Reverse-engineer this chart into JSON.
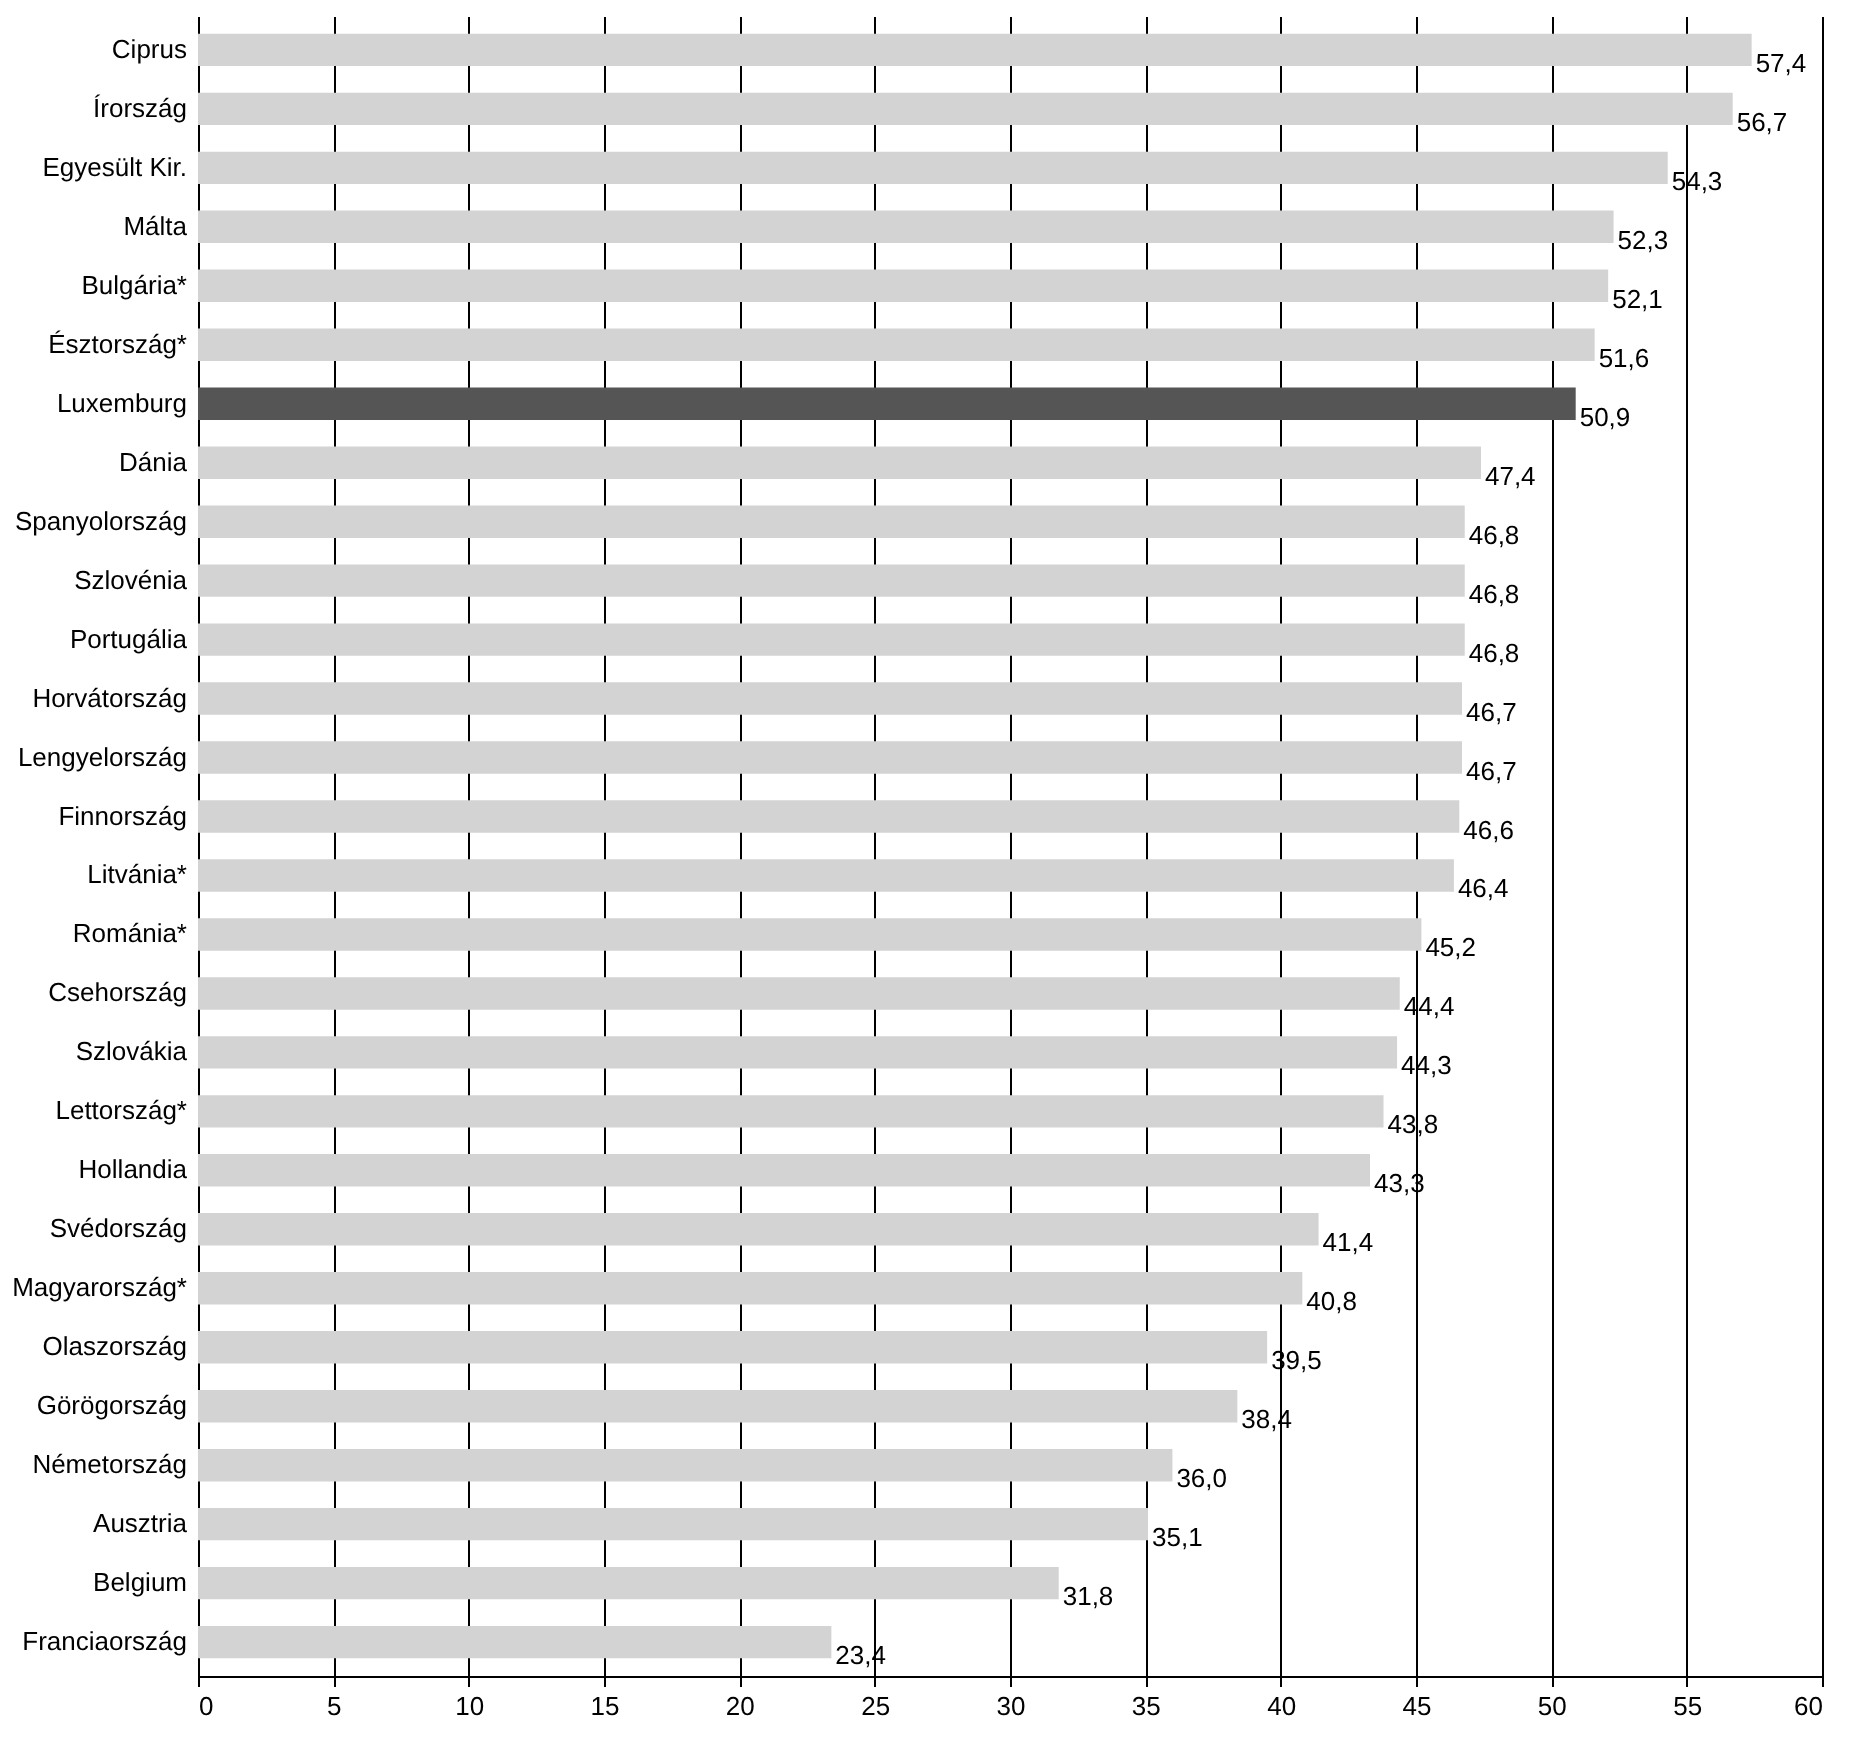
{
  "chart_data": {
    "type": "bar",
    "orientation": "horizontal",
    "categories": [
      "Ciprus",
      "Írország",
      "Egyesült Kir.",
      "Málta",
      "Bulgária*",
      "Észtország*",
      "Luxemburg",
      "Dánia",
      "Spanyolország",
      "Szlovénia",
      "Portugália",
      "Horvátország",
      "Lengyelország",
      "Finnország",
      "Litvánia*",
      "Románia*",
      "Csehország",
      "Szlovákia",
      "Lettország*",
      "Hollandia",
      "Svédország",
      "Magyarország*",
      "Olaszország",
      "Görögország",
      "Németország",
      "Ausztria",
      "Belgium",
      "Franciaország"
    ],
    "values": [
      57.4,
      56.7,
      54.3,
      52.3,
      52.1,
      51.6,
      50.9,
      47.4,
      46.8,
      46.8,
      46.8,
      46.7,
      46.7,
      46.6,
      46.4,
      45.2,
      44.4,
      44.3,
      43.8,
      43.3,
      41.4,
      40.8,
      39.5,
      38.4,
      36.0,
      35.1,
      31.8,
      23.4
    ],
    "value_labels": [
      "57,4",
      "56,7",
      "54,3",
      "52,3",
      "52,1",
      "51,6",
      "50,9",
      "47,4",
      "46,8",
      "46,8",
      "46,8",
      "46,7",
      "46,7",
      "46,6",
      "46,4",
      "45,2",
      "44,4",
      "44,3",
      "43,8",
      "43,3",
      "41,4",
      "40,8",
      "39,5",
      "38,4",
      "36,0",
      "35,1",
      "31,8",
      "23,4"
    ],
    "colors": [
      "#d3d3d3",
      "#d3d3d3",
      "#d3d3d3",
      "#d3d3d3",
      "#d3d3d3",
      "#d3d3d3",
      "#555555",
      "#d3d3d3",
      "#d3d3d3",
      "#d3d3d3",
      "#d3d3d3",
      "#d3d3d3",
      "#d3d3d3",
      "#d3d3d3",
      "#d3d3d3",
      "#d3d3d3",
      "#d3d3d3",
      "#d3d3d3",
      "#d3d3d3",
      "#d3d3d3",
      "#d3d3d3",
      "#d3d3d3",
      "#d3d3d3",
      "#d3d3d3",
      "#d3d3d3",
      "#d3d3d3",
      "#d3d3d3",
      "#d3d3d3"
    ],
    "xlim": [
      0,
      60
    ],
    "xticks": [
      0,
      5,
      10,
      15,
      20,
      25,
      30,
      35,
      40,
      45,
      50,
      55,
      60
    ],
    "grid": "x",
    "legend": false
  }
}
